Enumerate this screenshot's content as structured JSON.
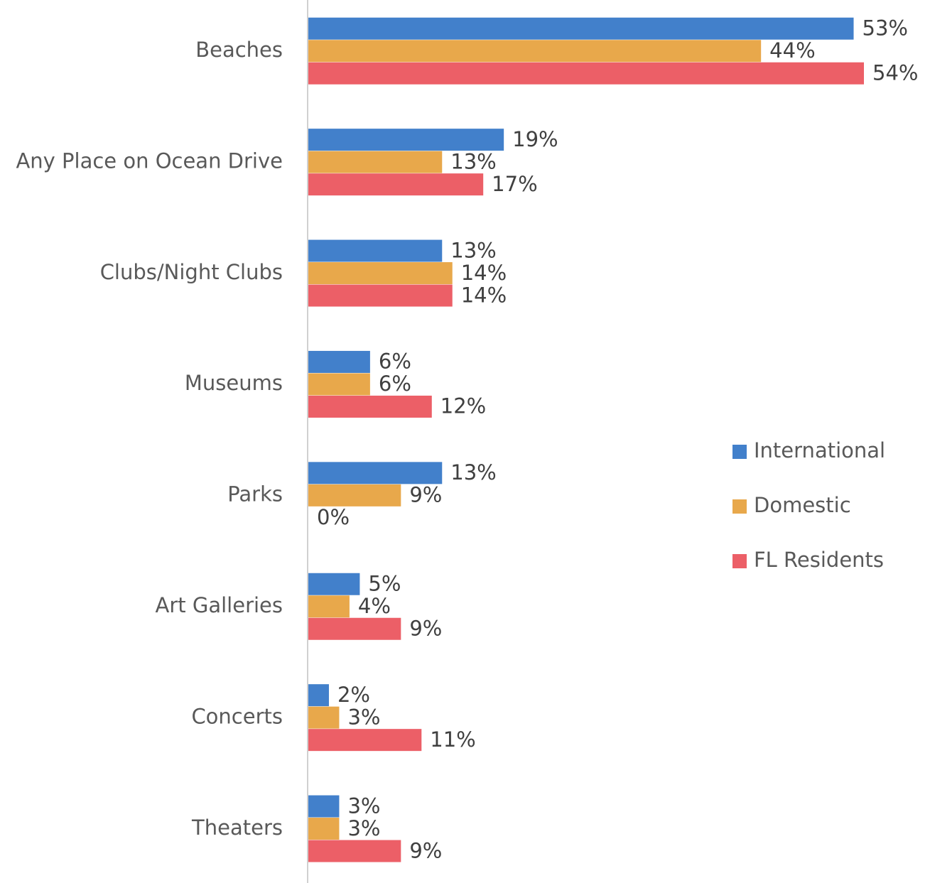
{
  "chart_data": {
    "type": "bar",
    "orientation": "horizontal",
    "categories": [
      "Beaches",
      "Any Place on Ocean Drive",
      "Clubs/Night Clubs",
      "Museums",
      "Parks",
      "Art Galleries",
      "Concerts",
      "Theaters"
    ],
    "series": [
      {
        "name": "International",
        "color": "#4280cb",
        "values": [
          53,
          19,
          13,
          6,
          13,
          5,
          2,
          3
        ],
        "value_labels": [
          "53%",
          "19%",
          "13%",
          "6%",
          "13%",
          "5%",
          "2%",
          "3%"
        ]
      },
      {
        "name": "Domestic",
        "color": "#e8a84b",
        "values": [
          44,
          13,
          14,
          6,
          9,
          4,
          3,
          3
        ],
        "value_labels": [
          "44%",
          "13%",
          "14%",
          "6%",
          "9%",
          "4%",
          "3%",
          "3%"
        ]
      },
      {
        "name": "FL Residents",
        "color": "#ec5f67",
        "values": [
          54,
          17,
          14,
          12,
          0,
          9,
          11,
          9
        ],
        "value_labels": [
          "54%",
          "17%",
          "14%",
          "12%",
          "0%",
          "9%",
          "11%",
          "9%"
        ]
      }
    ],
    "legend": "right"
  }
}
